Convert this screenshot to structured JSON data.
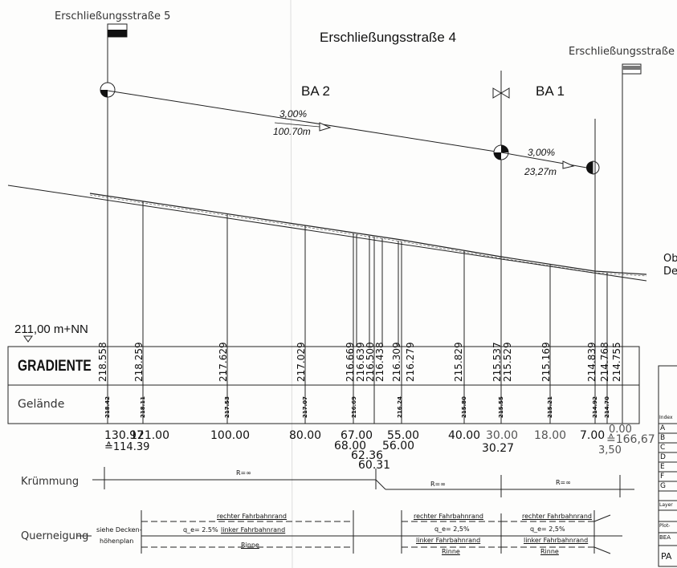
{
  "titles": {
    "main": "Erschließungsstraße 4",
    "left_road": "Erschließungsstraße 5",
    "right_road": "Erschließungsstraße"
  },
  "sections": {
    "ba2": "BA 2",
    "ba1": "BA 1"
  },
  "slopes": [
    {
      "percent": "3,00%",
      "length": "100.70m"
    },
    {
      "percent": "3,00%",
      "length": "23,27m"
    }
  ],
  "reference": {
    "datum": "211,00 m+NN"
  },
  "legend": {
    "line1": "Ob",
    "line2": "De"
  },
  "table": {
    "gradiente_label": "GRADIENTE",
    "gelaende_label": "Gelände"
  },
  "gradiente_values": [
    "218.558",
    "218.259",
    "217.629",
    "217.029",
    "216.669",
    "216.639",
    "216.500",
    "216.438",
    "216.309",
    "216.279",
    "215.829",
    "215.537",
    "215.529",
    "215.169",
    "214.839",
    "214.768",
    "214.755"
  ],
  "gelaende_values": [
    "218.42",
    "218.11",
    "217.53",
    "217.07",
    "216.69",
    "216.24",
    "215.80",
    "215.55",
    "215.21",
    "214.92",
    "214.70"
  ],
  "stations": {
    "s130": "130.97",
    "s130_eq": "≙114.39",
    "s121": "121.00",
    "s100": "100.00",
    "s80": "80.00",
    "s67": "67.00",
    "s68": "68.00",
    "s62": "62.36",
    "s60": "60.31",
    "s55": "55.00",
    "s56": "56.00",
    "s40": "40.00",
    "s30": "30.00",
    "s30b": "30.27",
    "s18": "18.00",
    "s7": "7.00",
    "s0": "0.00",
    "s0_eq": "≙166,67",
    "s350": "3,50"
  },
  "kruemmung": {
    "label": "Krümmung",
    "r1": "R=∞",
    "r2": "R=∞",
    "r3": "R=∞"
  },
  "querneigung": {
    "label": "Querneigung",
    "note1": "siehe Decken-",
    "note2": "höhenplan",
    "right_edge": "rechter Fahrbahnrand",
    "left_edge": "linker Fahrbahnrand",
    "gutter": "Rinne",
    "q": "q_e= 2.5%",
    "q2": "q_e= 2,5%"
  },
  "side_index": {
    "index": "Index",
    "rows": [
      "A",
      "B",
      "C",
      "D",
      "E",
      "F",
      "G"
    ],
    "layer": "Layer",
    "plot": "Plot-",
    "bea": "BEA",
    "pa": "PA"
  }
}
